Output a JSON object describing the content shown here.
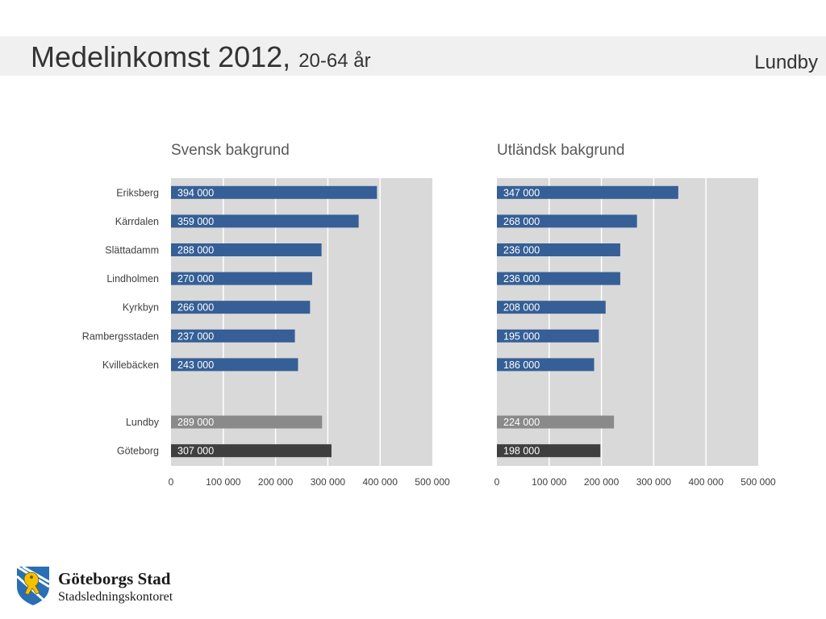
{
  "header": {
    "title_main": "Medelinkomst 2012,",
    "title_sub": "20-64 år",
    "region": "Lundby"
  },
  "colors": {
    "district_bar": "#355f96",
    "lundby_bar": "#8a8a8a",
    "goteborg_bar": "#3f3f3f",
    "plot_background": "#d9d9d9",
    "gridline": "#ffffff"
  },
  "logo": {
    "name": "Göteborgs Stad",
    "subtitle": "Stadsledningskontoret",
    "icon": "lion-crest-icon"
  },
  "chart_data": [
    {
      "type": "bar",
      "orientation": "horizontal",
      "title": "Svensk bakgrund",
      "categories": [
        "Eriksberg",
        "Kärrdalen",
        "Slättadamm",
        "Lindholmen",
        "Kyrkbyn",
        "Rambergsstaden",
        "Kvillebäcken",
        "Lundby",
        "Göteborg"
      ],
      "values": [
        394000,
        359000,
        288000,
        270000,
        266000,
        237000,
        243000,
        289000,
        307000
      ],
      "value_labels": [
        "394 000",
        "359 000",
        "288 000",
        "270 000",
        "266 000",
        "237 000",
        "243 000",
        "289 000",
        "307 000"
      ],
      "bar_colors": [
        "#355f96",
        "#355f96",
        "#355f96",
        "#355f96",
        "#355f96",
        "#355f96",
        "#355f96",
        "#8a8a8a",
        "#3f3f3f"
      ],
      "xlim": [
        0,
        500000
      ],
      "xticks": [
        0,
        100000,
        200000,
        300000,
        400000,
        500000
      ],
      "xtick_labels": [
        "0",
        "100 000",
        "200 000",
        "300 000",
        "400 000",
        "500 000"
      ],
      "xlabel": "",
      "ylabel": "",
      "grid": true
    },
    {
      "type": "bar",
      "orientation": "horizontal",
      "title": "Utländsk bakgrund",
      "categories": [
        "Eriksberg",
        "Kärrdalen",
        "Slättadamm",
        "Lindholmen",
        "Kyrkbyn",
        "Rambergsstaden",
        "Kvillebäcken",
        "Lundby",
        "Göteborg"
      ],
      "values": [
        347000,
        268000,
        236000,
        236000,
        208000,
        195000,
        186000,
        224000,
        198000
      ],
      "value_labels": [
        "347 000",
        "268 000",
        "236 000",
        "236 000",
        "208 000",
        "195 000",
        "186 000",
        "224 000",
        "198 000"
      ],
      "bar_colors": [
        "#355f96",
        "#355f96",
        "#355f96",
        "#355f96",
        "#355f96",
        "#355f96",
        "#355f96",
        "#8a8a8a",
        "#3f3f3f"
      ],
      "xlim": [
        0,
        500000
      ],
      "xticks": [
        0,
        100000,
        200000,
        300000,
        400000,
        500000
      ],
      "xtick_labels": [
        "0",
        "100 000",
        "200 000",
        "300 000",
        "400 000",
        "500 000"
      ],
      "xlabel": "",
      "ylabel": "",
      "grid": true
    }
  ]
}
